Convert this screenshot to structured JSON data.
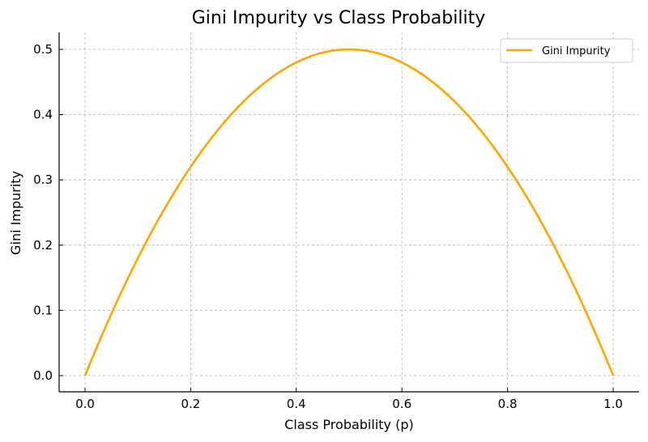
{
  "chart_data": {
    "type": "line",
    "title": "Gini Impurity vs Class Probability",
    "xlabel": "Class Probability (p)",
    "ylabel": "Gini Impurity",
    "xlim": [
      -0.05,
      1.05
    ],
    "ylim": [
      -0.025,
      0.525
    ],
    "xticks": [
      0.0,
      0.2,
      0.4,
      0.6,
      0.8,
      1.0
    ],
    "xtick_labels": [
      "0.0",
      "0.2",
      "0.4",
      "0.6",
      "0.8",
      "1.0"
    ],
    "yticks": [
      0.0,
      0.1,
      0.2,
      0.3,
      0.4,
      0.5
    ],
    "ytick_labels": [
      "0.0",
      "0.1",
      "0.2",
      "0.3",
      "0.4",
      "0.5"
    ],
    "grid": true,
    "legend_position": "upper right",
    "series": [
      {
        "name": "Gini Impurity",
        "color": "#FFA500",
        "formula": "2*p*(1-p)",
        "x": [
          0.0,
          0.05,
          0.1,
          0.15,
          0.2,
          0.25,
          0.3,
          0.35,
          0.4,
          0.45,
          0.5,
          0.55,
          0.6,
          0.65,
          0.7,
          0.75,
          0.8,
          0.85,
          0.9,
          0.95,
          1.0
        ],
        "y": [
          0.0,
          0.095,
          0.18,
          0.255,
          0.32,
          0.375,
          0.42,
          0.455,
          0.48,
          0.495,
          0.5,
          0.495,
          0.48,
          0.455,
          0.42,
          0.375,
          0.32,
          0.255,
          0.18,
          0.095,
          0.0
        ]
      }
    ]
  },
  "colors": {
    "line": "#FFA500",
    "grid": "#b0b0b0",
    "axis": "#000000",
    "legend_border": "#cccccc"
  }
}
